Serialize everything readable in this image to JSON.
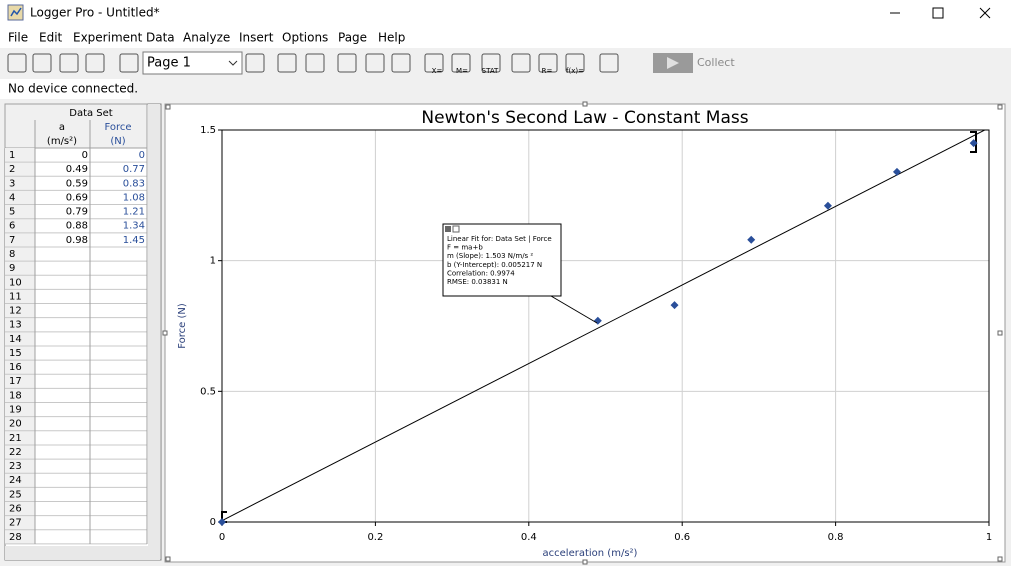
{
  "window": {
    "title": "Logger Pro - Untitled*"
  },
  "menu": [
    "File",
    "Edit",
    "Experiment",
    "Data",
    "Analyze",
    "Insert",
    "Options",
    "Page",
    "Help"
  ],
  "toolbar": {
    "page": "Page 1",
    "icon_labels": [
      "X=",
      "M=",
      "STAT",
      "R=",
      "f(x)="
    ],
    "collect": "Collect"
  },
  "status": "No device connected.",
  "table": {
    "title": "Data Set",
    "columns": [
      {
        "name": "a",
        "unit": "(m/s²)"
      },
      {
        "name": "Force",
        "unit": "(N)"
      }
    ],
    "row_numbers": [
      1,
      2,
      3,
      4,
      5,
      6,
      7,
      8,
      9,
      10,
      11,
      12,
      13,
      14,
      15,
      16,
      17,
      18,
      19,
      20,
      21,
      22,
      23,
      24,
      25,
      26,
      27,
      28
    ]
  },
  "chart_data": {
    "type": "scatter",
    "title": "Newton's Second Law - Constant Mass",
    "x_label": "acceleration (m/s²)",
    "y_label": "Force (N)",
    "x": [
      0,
      0.49,
      0.59,
      0.69,
      0.79,
      0.88,
      0.98
    ],
    "values": [
      0,
      0.77,
      0.83,
      1.08,
      1.21,
      1.34,
      1.45
    ],
    "color": "#2a4f9a",
    "xlim": [
      0,
      1
    ],
    "ylim": [
      0,
      1.5
    ],
    "xticks": [
      0,
      0.2,
      0.4,
      0.6,
      0.8,
      1
    ],
    "yticks": [
      0,
      0.5,
      1,
      1.5
    ],
    "grid": true,
    "fit": {
      "slope": 1.503,
      "intercept": 0.005217,
      "annotation": [
        "Linear Fit for: Data Set | Force",
        "F = ma+b",
        "m (Slope): 1.503 N/m/s ²",
        "b (Y-Intercept): 0.005217 N",
        "Correlation: 0.9974",
        "RMSE: 0.03831 N"
      ]
    }
  }
}
